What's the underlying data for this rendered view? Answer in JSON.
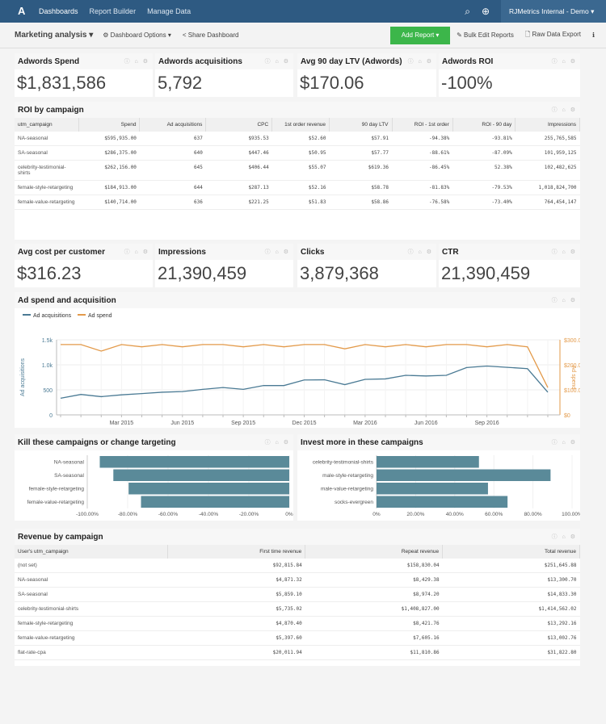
{
  "nav": {
    "logo": "A",
    "items": [
      "Dashboards",
      "Report Builder",
      "Manage Data"
    ],
    "account": "RJMetrics Internal - Demo ▾"
  },
  "toolbar": {
    "title": "Marketing analysis ▾",
    "options": "⚙ Dashboard Options ▾",
    "share": "< Share Dashboard",
    "add": "Add Report ▾",
    "bulk": "✎ Bulk Edit Reports",
    "export": "🗋 Raw Data Export",
    "info": "ℹ"
  },
  "icons": "ⓘ ⌂ ⚙",
  "kpis1": [
    {
      "label": "Adwords Spend",
      "value": "$1,831,586"
    },
    {
      "label": "Adwords acquisitions",
      "value": "5,792"
    },
    {
      "label": "Avg 90 day LTV (Adwords)",
      "value": "$170.06"
    },
    {
      "label": "Adwords ROI",
      "value": "-100%"
    }
  ],
  "kpis2": [
    {
      "label": "Avg cost per customer",
      "value": "$316.23"
    },
    {
      "label": "Impressions",
      "value": "21,390,459"
    },
    {
      "label": "Clicks",
      "value": "3,879,368"
    },
    {
      "label": "CTR",
      "value": "21,390,459"
    }
  ],
  "roi": {
    "title": "ROI by campaign",
    "headers": [
      "utm_campaign",
      "Spend",
      "Ad acquisitions",
      "CPC",
      "1st order revenue",
      "90 day LTV",
      "ROI - 1st order",
      "ROI - 90 day",
      "Impressions"
    ],
    "rows": [
      [
        "NA-seasonal",
        "$595,935.00",
        "637",
        "$935.53",
        "$52.60",
        "$57.91",
        "-94.38%",
        "-93.81%",
        "255,765,585"
      ],
      [
        "SA-seasonal",
        "$286,375.00",
        "640",
        "$447.46",
        "$50.95",
        "$57.77",
        "-88.61%",
        "-87.09%",
        "101,959,125"
      ],
      [
        "celebrity-testimonial-shirts",
        "$262,156.00",
        "645",
        "$406.44",
        "$55.07",
        "$619.36",
        "-86.45%",
        "52.38%",
        "102,482,625"
      ],
      [
        "female-style-retargeting",
        "$184,913.00",
        "644",
        "$287.13",
        "$52.16",
        "$58.78",
        "-81.83%",
        "-79.53%",
        "1,018,824,700"
      ],
      [
        "female-value-retargeting",
        "$140,714.00",
        "636",
        "$221.25",
        "$51.83",
        "$58.86",
        "-76.58%",
        "-73.40%",
        "764,454,147"
      ]
    ]
  },
  "line": {
    "title": "Ad spend and acquisition"
  },
  "chart_data": [
    {
      "type": "line",
      "title": "Ad spend and acquisition",
      "ylabel": "Ad acquisitions",
      "y2label": "Ad spend",
      "ylim": [
        0,
        1500
      ],
      "y2lim": [
        0,
        300
      ],
      "yticks": [
        "0",
        "500",
        "1.0k",
        "1.5k"
      ],
      "y2ticks": [
        "$0",
        "$100.00",
        "$200.00",
        "$300.00"
      ],
      "xticks": [
        "Mar 2015",
        "Jun 2015",
        "Sep 2015",
        "Dec 2015",
        "Mar 2016",
        "Jun 2016",
        "Sep 2016"
      ],
      "x": [
        "2014-12",
        "2015-01",
        "2015-02",
        "2015-03",
        "2015-04",
        "2015-05",
        "2015-06",
        "2015-07",
        "2015-08",
        "2015-09",
        "2015-10",
        "2015-11",
        "2015-12",
        "2016-01",
        "2016-02",
        "2016-03",
        "2016-04",
        "2016-05",
        "2016-06",
        "2016-07",
        "2016-08",
        "2016-09",
        "2016-10",
        "2016-11",
        "2016-12"
      ],
      "legend": "top-left",
      "grid": true,
      "series": [
        {
          "name": "Ad acquisitions",
          "color": "#4a7a94",
          "axis": "left",
          "values": [
            333,
            408,
            364,
            400,
            426,
            453,
            466,
            510,
            546,
            510,
            586,
            586,
            697,
            701,
            604,
            710,
            719,
            790,
            777,
            790,
            945,
            976,
            950,
            923,
            453
          ]
        },
        {
          "name": "Ad spend",
          "color": "#e39a4a",
          "axis": "right",
          "values": [
            281,
            281,
            255,
            281,
            272,
            281,
            272,
            281,
            281,
            272,
            281,
            272,
            281,
            281,
            264,
            281,
            272,
            281,
            272,
            281,
            281,
            272,
            281,
            272,
            109
          ]
        }
      ]
    },
    {
      "type": "bar",
      "orientation": "horizontal",
      "title": "Kill these campaigns or change targeting",
      "categories": [
        "NA-seasonal",
        "SA-seasonal",
        "female-style-retargeting",
        "female-value-retargeting"
      ],
      "values": [
        -93.81,
        -87.09,
        -79.53,
        -73.4
      ],
      "xlim": [
        -100,
        0
      ],
      "xticks": [
        "-100.00%",
        "-80.00%",
        "-60.00%",
        "-40.00%",
        "-20.00%",
        "0%"
      ],
      "color": "#5a8a99"
    },
    {
      "type": "bar",
      "orientation": "horizontal",
      "title": "Invest more in these campaigns",
      "categories": [
        "celebrity-testimonial-shirts",
        "male-style-retargeting",
        "male-value-retargeting",
        "socks-evergreen"
      ],
      "values": [
        52.38,
        89,
        57,
        67
      ],
      "xlim": [
        0,
        100
      ],
      "xticks": [
        "0%",
        "20.00%",
        "40.00%",
        "60.00%",
        "80.00%",
        "100.00%"
      ],
      "color": "#5a8a99"
    }
  ],
  "rev": {
    "title": "Revenue by campaign",
    "headers": [
      "User's utm_campaign",
      "First time revenue",
      "Repeat revenue",
      "Total revenue"
    ],
    "rows": [
      [
        "(not set)",
        "$92,815.84",
        "$158,830.04",
        "$251,645.88"
      ],
      [
        "NA-seasonal",
        "$4,871.32",
        "$8,429.38",
        "$13,300.70"
      ],
      [
        "SA-seasonal",
        "$5,859.10",
        "$8,974.20",
        "$14,833.30"
      ],
      [
        "celebrity-testimonial-shirts",
        "$5,735.02",
        "$1,408,827.00",
        "$1,414,562.02"
      ],
      [
        "female-style-retargeting",
        "$4,870.40",
        "$8,421.76",
        "$13,292.16"
      ],
      [
        "female-value-retargeting",
        "$5,397.60",
        "$7,605.16",
        "$13,002.76"
      ],
      [
        "flat-rate-cpa",
        "$20,011.94",
        "$11,810.86",
        "$31,822.80"
      ]
    ]
  }
}
